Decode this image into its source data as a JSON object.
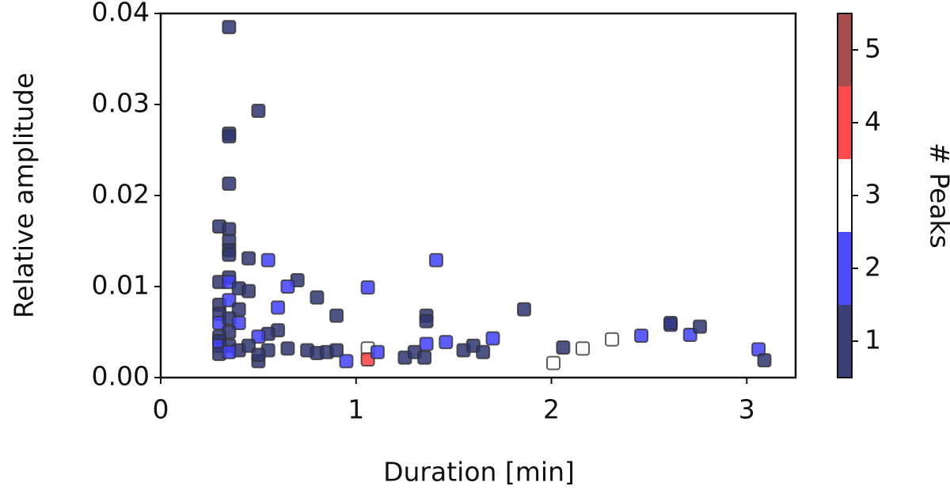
{
  "chart_data": {
    "type": "scatter",
    "xlabel": "Duration [min]",
    "ylabel": "Relative amplitude",
    "xlim": [
      0,
      3.25
    ],
    "xticks": [
      0,
      1,
      2,
      3
    ],
    "ylim": [
      0,
      0.04
    ],
    "yticks": [
      {
        "value": 0,
        "label": "0.00"
      },
      0.01,
      0.02,
      0.03,
      0.04
    ],
    "x": [
      0.35,
      0.5,
      0.35,
      0.35,
      0.35,
      0.3,
      0.35,
      0.35,
      0.35,
      0.35,
      0.45,
      0.55,
      1.41,
      0.3,
      0.35,
      0.35,
      0.4,
      0.45,
      0.7,
      0.65,
      1.06,
      0.8,
      0.3,
      0.35,
      0.3,
      0.4,
      0.6,
      0.9,
      1.86,
      1.36,
      1.36,
      0.3,
      0.35,
      0.4,
      0.6,
      0.55,
      0.35,
      0.5,
      0.3,
      0.3,
      0.3,
      0.35,
      0.4,
      0.45,
      0.55,
      0.65,
      0.75,
      0.8,
      0.85,
      0.9,
      0.95,
      1.06,
      1.06,
      1.11,
      1.25,
      1.3,
      1.35,
      1.36,
      1.46,
      1.55,
      1.6,
      1.65,
      1.7,
      2.01,
      2.06,
      2.16,
      2.31,
      2.46,
      2.61,
      2.61,
      2.71,
      2.76,
      3.06,
      3.09,
      0.3,
      0.5,
      0.5,
      0.35
    ],
    "y": [
      0.0385,
      0.0293,
      0.0268,
      0.0265,
      0.0213,
      0.0166,
      0.0163,
      0.015,
      0.014,
      0.0135,
      0.0131,
      0.0129,
      0.0129,
      0.0105,
      0.011,
      0.0105,
      0.0098,
      0.0095,
      0.0107,
      0.01,
      0.0099,
      0.0088,
      0.008,
      0.0085,
      0.007,
      0.0075,
      0.0077,
      0.0068,
      0.0075,
      0.0068,
      0.0062,
      0.006,
      0.0065,
      0.006,
      0.0052,
      0.0048,
      0.005,
      0.0045,
      0.0045,
      0.004,
      0.0035,
      0.0035,
      0.003,
      0.0035,
      0.003,
      0.0032,
      0.003,
      0.0027,
      0.0028,
      0.003,
      0.0018,
      0.0032,
      0.002,
      0.0028,
      0.0022,
      0.0028,
      0.0022,
      0.0037,
      0.0039,
      0.003,
      0.0035,
      0.0028,
      0.0043,
      0.0016,
      0.0033,
      0.0032,
      0.0042,
      0.0046,
      0.0058,
      0.006,
      0.0047,
      0.0056,
      0.0031,
      0.0019,
      0.0026,
      0.0018,
      0.0025,
      0.0028
    ],
    "peaks": [
      1,
      1,
      1,
      1,
      1,
      1,
      1,
      1,
      1,
      1,
      1,
      2,
      2,
      1,
      1,
      2,
      1,
      1,
      1,
      2,
      2,
      1,
      1,
      2,
      1,
      1,
      2,
      1,
      1,
      1,
      1,
      2,
      1,
      2,
      1,
      1,
      1,
      2,
      1,
      1,
      2,
      1,
      1,
      1,
      1,
      1,
      1,
      1,
      1,
      1,
      2,
      3,
      4,
      2,
      1,
      1,
      1,
      2,
      2,
      1,
      1,
      1,
      2,
      3,
      1,
      3,
      3,
      2,
      2,
      1,
      2,
      1,
      2,
      1,
      1,
      1,
      1,
      2
    ],
    "colorbar": {
      "label": "# Peaks",
      "clim": [
        0.5,
        5.5
      ],
      "ticks": [
        1,
        2,
        3,
        4,
        5
      ],
      "colors": [
        "#2e3570",
        "#4141ff",
        "#ffffff",
        "#ff4141",
        "#a14343"
      ]
    }
  }
}
